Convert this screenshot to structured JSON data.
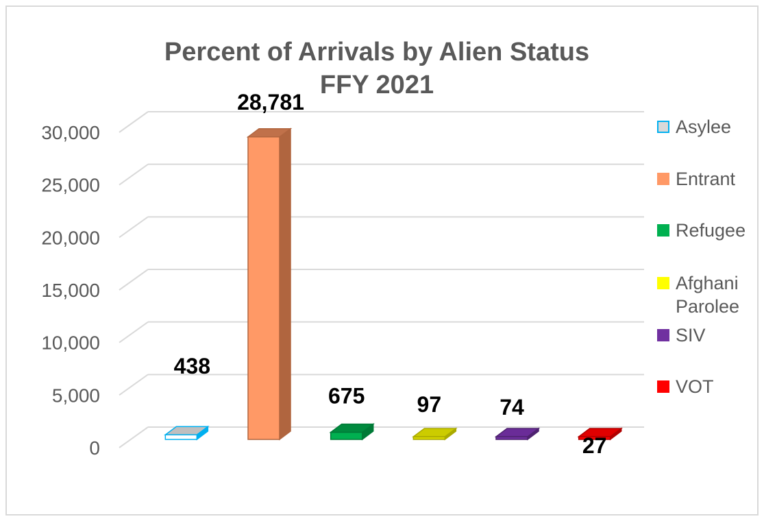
{
  "chart_data": {
    "type": "bar",
    "title_lines": [
      "Percent of Arrivals by Alien Status",
      "FFY 2021"
    ],
    "categories": [
      "Asylee",
      "Entrant",
      "Refugee",
      "Afghani Parolee",
      "SIV",
      "VOT"
    ],
    "values": [
      438,
      28781,
      675,
      97,
      74,
      27
    ],
    "data_labels": [
      "438",
      "28,781",
      "675",
      "97",
      "74",
      "27"
    ],
    "ylim": [
      0,
      30000
    ],
    "y_ticks": [
      0,
      5000,
      10000,
      15000,
      20000,
      25000,
      30000
    ],
    "y_tick_labels": [
      "0",
      "5,000",
      "10,000",
      "15,000",
      "20,000",
      "25,000",
      "30,000"
    ],
    "grid": true,
    "legend_position": "right",
    "legend": [
      {
        "label_lines": [
          "Asylee"
        ],
        "color": "#D9D9D9",
        "border": "#00B0F0"
      },
      {
        "label_lines": [
          "Entrant"
        ],
        "color": "#FF9966",
        "border": "#FF9966"
      },
      {
        "label_lines": [
          "Refugee"
        ],
        "color": "#00B050",
        "border": "#00B050"
      },
      {
        "label_lines": [
          "Afghani",
          "Parolee"
        ],
        "color": "#FFFF00",
        "border": "#FFFF00"
      },
      {
        "label_lines": [
          "SIV"
        ],
        "color": "#7030A0",
        "border": "#7030A0"
      },
      {
        "label_lines": [
          "VOT"
        ],
        "color": "#FF0000",
        "border": "#FF0000"
      }
    ],
    "bar_colors": [
      {
        "front": "#FFFFFF",
        "side": "#00B0F0",
        "top": "#BFBFBF",
        "stroke": "#00B0F0"
      },
      {
        "front": "#FF9966",
        "side": "#B0653F",
        "top": "#C0714A",
        "stroke": "#B0653F"
      },
      {
        "front": "#00B050",
        "side": "#007A37",
        "top": "#008A3E",
        "stroke": "#007A37"
      },
      {
        "front": "#D6D600",
        "side": "#AAAA00",
        "top": "#CCCC00",
        "stroke": "#AAAA00"
      },
      {
        "front": "#7030A0",
        "side": "#4E2270",
        "top": "#6A2C98",
        "stroke": "#4E2270"
      },
      {
        "front": "#FF0000",
        "side": "#B00000",
        "top": "#E00000",
        "stroke": "#B00000"
      }
    ]
  }
}
